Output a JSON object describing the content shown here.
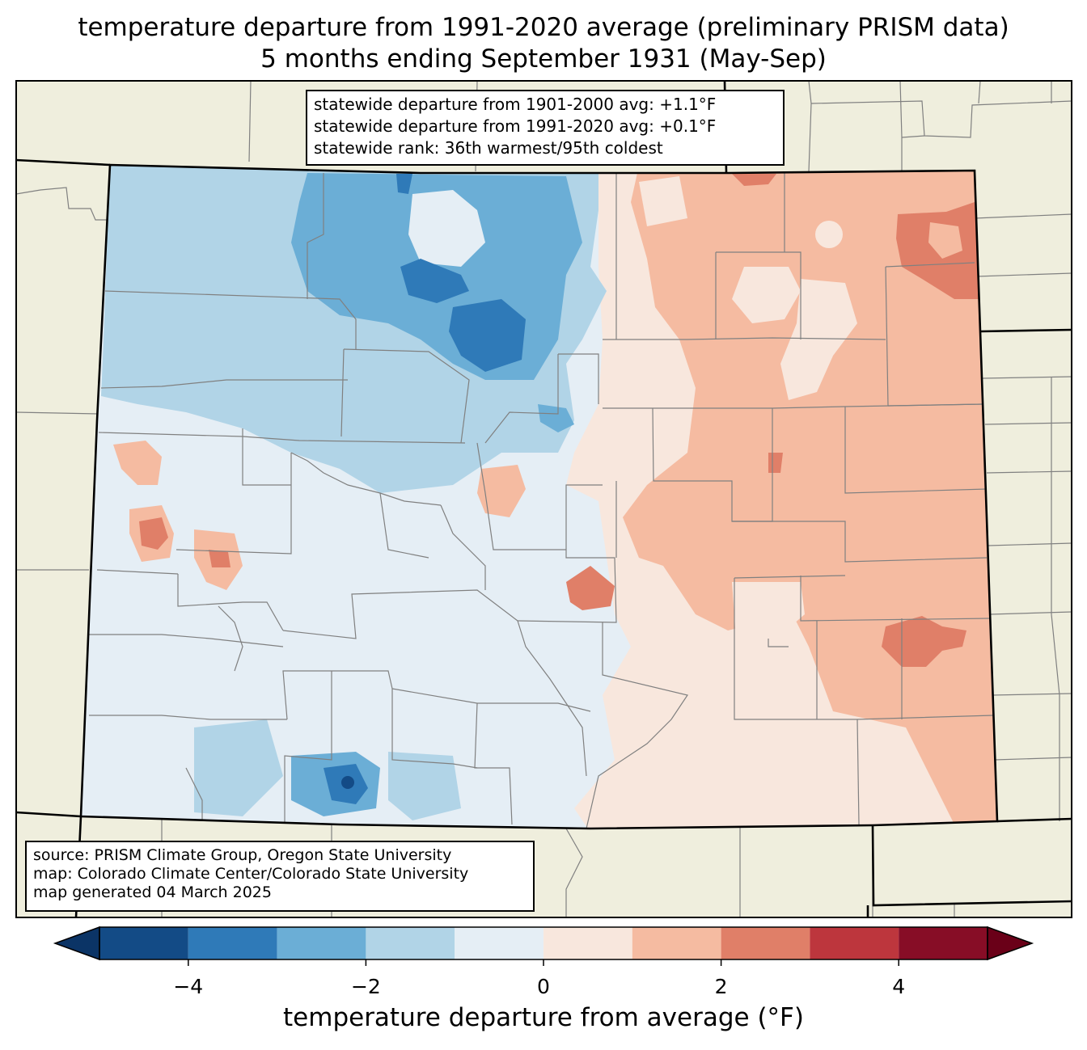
{
  "title": {
    "line1": "temperature departure from 1991-2020 average (preliminary PRISM data)",
    "line2": "5 months ending September 1931 (May-Sep)"
  },
  "stats_box": {
    "line1": "statewide departure from 1901-2000 avg: +1.1°F",
    "line2": "statewide departure from 1991-2020 avg: +0.1°F",
    "line3": "statewide rank: 36th warmest/95th coldest"
  },
  "credits_box": {
    "line1": "source: PRISM Climate Group, Oregon State University",
    "line2": "map: Colorado Climate Center/Colorado State University",
    "line3": "map generated 04 March 2025"
  },
  "colorbar": {
    "label": "temperature departure from average (°F)",
    "min": -5,
    "max": 5,
    "ticks": [
      -4,
      -2,
      0,
      2,
      4
    ],
    "tick_labels": [
      "−4",
      "−2",
      "0",
      "2",
      "4"
    ],
    "bins": [
      {
        "from": -5,
        "to": -4,
        "color": "#134b86"
      },
      {
        "from": -4,
        "to": -3,
        "color": "#2f7ab8"
      },
      {
        "from": -3,
        "to": -2,
        "color": "#6baed6"
      },
      {
        "from": -2,
        "to": -1,
        "color": "#b1d4e7"
      },
      {
        "from": -1,
        "to": 0,
        "color": "#e5eef5"
      },
      {
        "from": 0,
        "to": 1,
        "color": "#f8e7dd"
      },
      {
        "from": 1,
        "to": 2,
        "color": "#f5bba1"
      },
      {
        "from": 2,
        "to": 3,
        "color": "#e07f68"
      },
      {
        "from": 3,
        "to": 4,
        "color": "#bd363d"
      },
      {
        "from": 4,
        "to": 5,
        "color": "#870d26"
      }
    ],
    "under_color": "#0b3466",
    "over_color": "#6a0018"
  },
  "map_colors": {
    "background_land": "#efeedd",
    "state_border": "#000000",
    "county_border": "#808080"
  }
}
